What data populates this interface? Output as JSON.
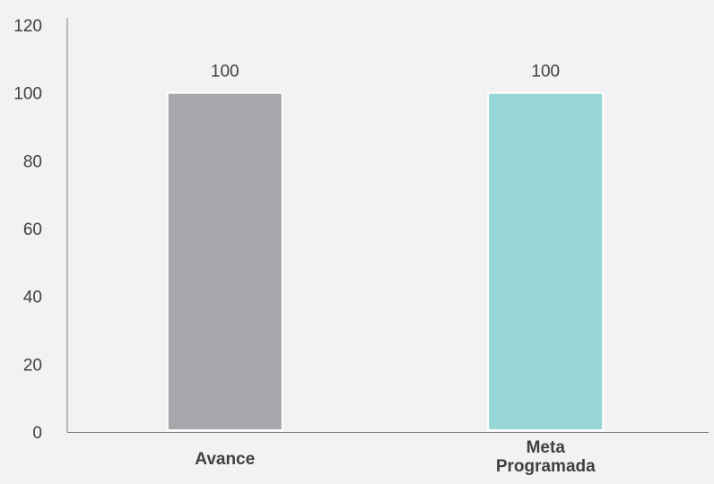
{
  "chart_data": {
    "type": "bar",
    "title": "",
    "xlabel": "",
    "ylabel": "",
    "categories": [
      [
        "Avance"
      ],
      [
        "Meta",
        "Programada"
      ]
    ],
    "values": [
      100,
      100
    ],
    "data_labels": [
      "100",
      "100"
    ],
    "bar_colors": [
      "#a6a7aa",
      "#96d6d6"
    ],
    "ylim": [
      0,
      120
    ],
    "yticks": [
      0,
      20,
      40,
      60,
      80,
      100,
      120
    ],
    "grid": false,
    "legend": "none"
  }
}
